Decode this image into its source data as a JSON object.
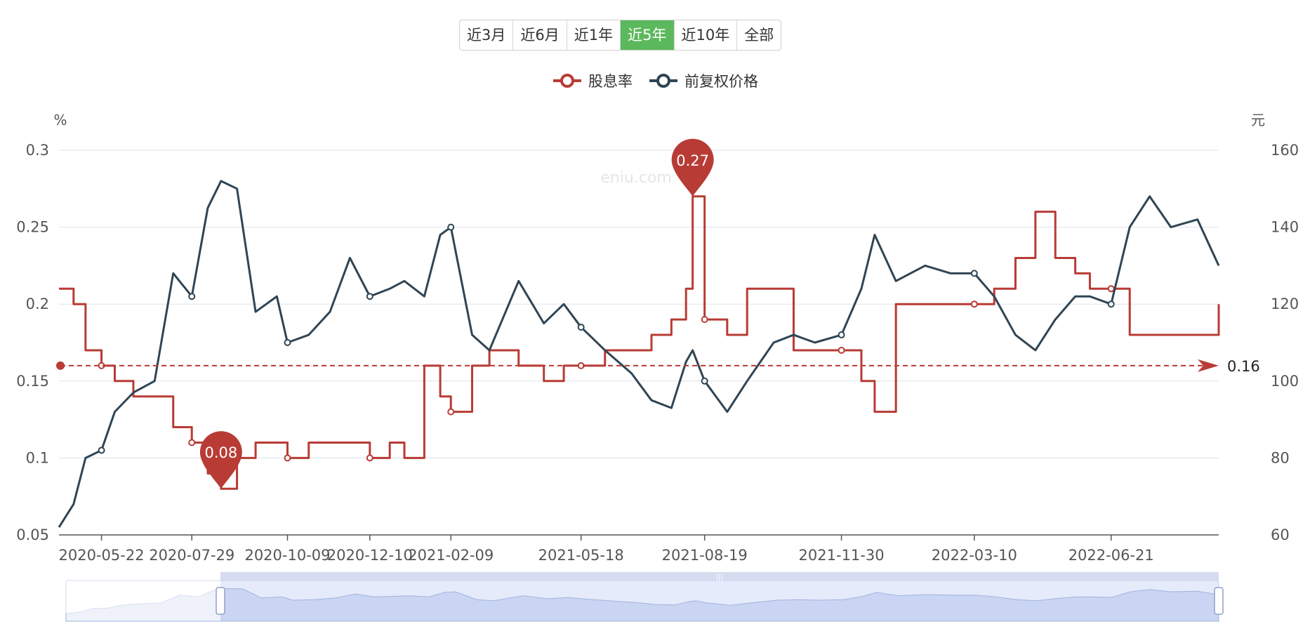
{
  "range_buttons": [
    "近3月",
    "近6月",
    "近1年",
    "近5年",
    "近10年",
    "全部"
  ],
  "active_range": "近5年",
  "watermark": "eniu.com",
  "legend": [
    {
      "name": "股息率",
      "color": "#b83b35"
    },
    {
      "name": "前复权价格",
      "color": "#2f4554"
    }
  ],
  "chart_data": {
    "type": "line",
    "y_left_unit": "%",
    "y_right_unit": "元",
    "y_left_ticks": [
      "0.3",
      "0.25",
      "0.2",
      "0.15",
      "0.1",
      "0.05"
    ],
    "y_right_ticks": [
      "160",
      "140",
      "120",
      "100",
      "80",
      "60"
    ],
    "ylim_left": [
      0.05,
      0.3
    ],
    "ylim_right": [
      60,
      160
    ],
    "x_ticks": [
      "2020-05-22",
      "2020-07-29",
      "2020-10-09",
      "2020-12-10",
      "2021-02-09",
      "2021-05-18",
      "2021-08-19",
      "2021-11-30",
      "2022-03-10",
      "2022-06-21"
    ],
    "grid": true,
    "legend_position": "top-center",
    "series": [
      {
        "name": "股息率",
        "axis": "left",
        "color": "#b83b35",
        "x": [
          "2020-04-20",
          "2020-05-01",
          "2020-05-10",
          "2020-05-22",
          "2020-06-01",
          "2020-06-15",
          "2020-07-01",
          "2020-07-15",
          "2020-07-29",
          "2020-08-10",
          "2020-08-20",
          "2020-09-01",
          "2020-09-15",
          "2020-10-01",
          "2020-10-09",
          "2020-10-25",
          "2020-11-10",
          "2020-11-25",
          "2020-12-10",
          "2020-12-25",
          "2021-01-05",
          "2021-01-20",
          "2021-02-01",
          "2021-02-09",
          "2021-02-25",
          "2021-03-10",
          "2021-04-01",
          "2021-04-20",
          "2021-05-05",
          "2021-05-18",
          "2021-06-05",
          "2021-06-25",
          "2021-07-10",
          "2021-07-25",
          "2021-08-05",
          "2021-08-10",
          "2021-08-19",
          "2021-09-05",
          "2021-09-20",
          "2021-10-10",
          "2021-10-25",
          "2021-11-10",
          "2021-11-30",
          "2021-12-15",
          "2021-12-25",
          "2022-01-10",
          "2022-02-01",
          "2022-02-20",
          "2022-03-10",
          "2022-03-25",
          "2022-04-10",
          "2022-04-25",
          "2022-05-10",
          "2022-05-25",
          "2022-06-05",
          "2022-06-21",
          "2022-07-05",
          "2022-07-20",
          "2022-08-05",
          "2022-08-25",
          "2022-09-10"
        ],
        "y": [
          0.21,
          0.2,
          0.17,
          0.16,
          0.15,
          0.14,
          0.14,
          0.12,
          0.11,
          0.09,
          0.08,
          0.1,
          0.11,
          0.11,
          0.1,
          0.11,
          0.11,
          0.11,
          0.1,
          0.11,
          0.1,
          0.16,
          0.14,
          0.13,
          0.16,
          0.17,
          0.16,
          0.15,
          0.16,
          0.16,
          0.17,
          0.17,
          0.18,
          0.19,
          0.21,
          0.27,
          0.19,
          0.18,
          0.21,
          0.21,
          0.17,
          0.17,
          0.17,
          0.15,
          0.13,
          0.2,
          0.2,
          0.2,
          0.2,
          0.21,
          0.23,
          0.26,
          0.23,
          0.22,
          0.21,
          0.21,
          0.18,
          0.18,
          0.18,
          0.18,
          0.2
        ]
      },
      {
        "name": "前复权价格",
        "axis": "right",
        "color": "#2f4554",
        "x": [
          "2020-04-20",
          "2020-05-01",
          "2020-05-10",
          "2020-05-22",
          "2020-06-01",
          "2020-06-15",
          "2020-07-01",
          "2020-07-15",
          "2020-07-29",
          "2020-08-10",
          "2020-08-20",
          "2020-09-01",
          "2020-09-15",
          "2020-10-01",
          "2020-10-09",
          "2020-10-25",
          "2020-11-10",
          "2020-11-25",
          "2020-12-10",
          "2020-12-25",
          "2021-01-05",
          "2021-01-20",
          "2021-02-01",
          "2021-02-09",
          "2021-02-25",
          "2021-03-10",
          "2021-04-01",
          "2021-04-20",
          "2021-05-05",
          "2021-05-18",
          "2021-06-05",
          "2021-06-25",
          "2021-07-10",
          "2021-07-25",
          "2021-08-05",
          "2021-08-10",
          "2021-08-19",
          "2021-09-05",
          "2021-09-20",
          "2021-10-10",
          "2021-10-25",
          "2021-11-10",
          "2021-11-30",
          "2021-12-15",
          "2021-12-25",
          "2022-01-10",
          "2022-02-01",
          "2022-02-20",
          "2022-03-10",
          "2022-03-25",
          "2022-04-10",
          "2022-04-25",
          "2022-05-10",
          "2022-05-25",
          "2022-06-05",
          "2022-06-21",
          "2022-07-05",
          "2022-07-20",
          "2022-08-05",
          "2022-08-25",
          "2022-09-10"
        ],
        "y": [
          62,
          68,
          80,
          82,
          92,
          97,
          100,
          128,
          122,
          145,
          152,
          150,
          118,
          122,
          110,
          112,
          118,
          132,
          122,
          124,
          126,
          122,
          138,
          140,
          112,
          108,
          126,
          115,
          120,
          114,
          108,
          102,
          95,
          93,
          105,
          108,
          100,
          92,
          100,
          110,
          112,
          110,
          112,
          124,
          138,
          126,
          130,
          128,
          128,
          122,
          112,
          108,
          116,
          122,
          122,
          120,
          140,
          148,
          140,
          142,
          130
        ]
      }
    ],
    "mark_points": [
      {
        "label": "0.08",
        "series": "股息率",
        "x": "2020-08-20",
        "y": 0.08
      },
      {
        "label": "0.27",
        "series": "股息率",
        "x": "2021-08-10",
        "y": 0.27
      }
    ],
    "mark_line": {
      "label": "0.16",
      "series": "股息率",
      "y": 0.16
    },
    "x_domain": [
      "2020-04-20",
      "2022-09-10"
    ]
  }
}
